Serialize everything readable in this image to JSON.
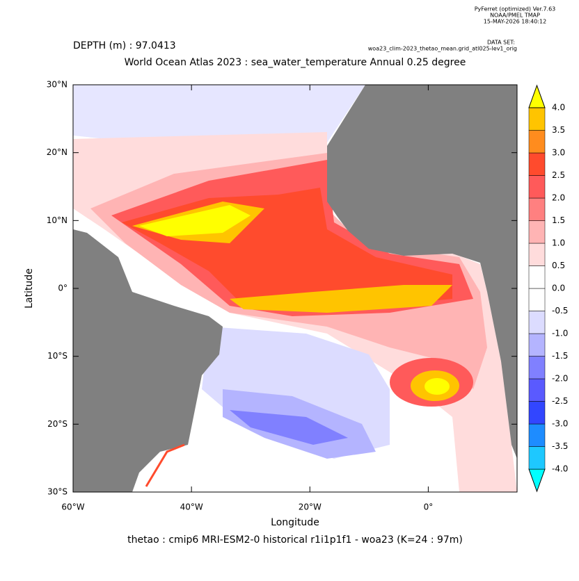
{
  "chart_data": {
    "type": "contour-map",
    "header": [
      "PyFerret (optimized) Ver.7.63",
      "NOAA/PMEL TMAP",
      "15-MAY-2026 18:40:12"
    ],
    "dataset_label": "DATA SET:",
    "dataset": "woa23_clim-2023_thetao_mean.grid_atl025-lev1_orig",
    "depth_label": "DEPTH (m) : 97.0413",
    "title": "World Ocean Atlas 2023 : sea_water_temperature Annual  0.25 degree",
    "xlabel": "Longitude",
    "ylabel": "Latitude",
    "caption": "thetao : cmip6 MRI-ESM2-0 historical r1i1p1f1 - woa23  (K=24 : 97m)",
    "xlim": [
      -60,
      15
    ],
    "ylim": [
      -30,
      30
    ],
    "xticks": [
      {
        "value": -60,
        "label": "60°W"
      },
      {
        "value": -40,
        "label": "40°W"
      },
      {
        "value": -20,
        "label": "20°W"
      },
      {
        "value": 0,
        "label": "0°"
      }
    ],
    "yticks": [
      {
        "value": 30,
        "label": "30°N"
      },
      {
        "value": 20,
        "label": "20°N"
      },
      {
        "value": 10,
        "label": "10°N"
      },
      {
        "value": 0,
        "label": "0°"
      },
      {
        "value": -10,
        "label": "10°S"
      },
      {
        "value": -20,
        "label": "20°S"
      },
      {
        "value": -30,
        "label": "30°S"
      }
    ],
    "levels": [
      {
        "value": -4,
        "label": "-4.0"
      },
      {
        "value": -3.5,
        "label": "-3.5"
      },
      {
        "value": -3,
        "label": "-3.0"
      },
      {
        "value": -2.5,
        "label": "-2.5"
      },
      {
        "value": -2,
        "label": "-2.0"
      },
      {
        "value": -1.5,
        "label": "-1.5"
      },
      {
        "value": -1,
        "label": "-1.0"
      },
      {
        "value": -0.5,
        "label": "-0.5"
      },
      {
        "value": 0,
        "label": "0.0"
      },
      {
        "value": 0.5,
        "label": "0.5"
      },
      {
        "value": 1,
        "label": "1.0"
      },
      {
        "value": 1.5,
        "label": "1.5"
      },
      {
        "value": 2,
        "label": "2.0"
      },
      {
        "value": 2.5,
        "label": "2.5"
      },
      {
        "value": 3,
        "label": "3.0"
      },
      {
        "value": 3.5,
        "label": "3.5"
      },
      {
        "value": 4,
        "label": "4.0"
      }
    ],
    "colors": [
      "#00ffff",
      "#1ec8ff",
      "#1e8cff",
      "#3246ff",
      "#5a5aff",
      "#8080ff",
      "#b4b4ff",
      "#dcdcff",
      "#ffffff",
      "#ffffff",
      "#ffdcdc",
      "#ffb4b4",
      "#ff8080",
      "#ff5a5a",
      "#ff4b2d",
      "#ff8c1e",
      "#ffc400",
      "#ffff00"
    ]
  }
}
